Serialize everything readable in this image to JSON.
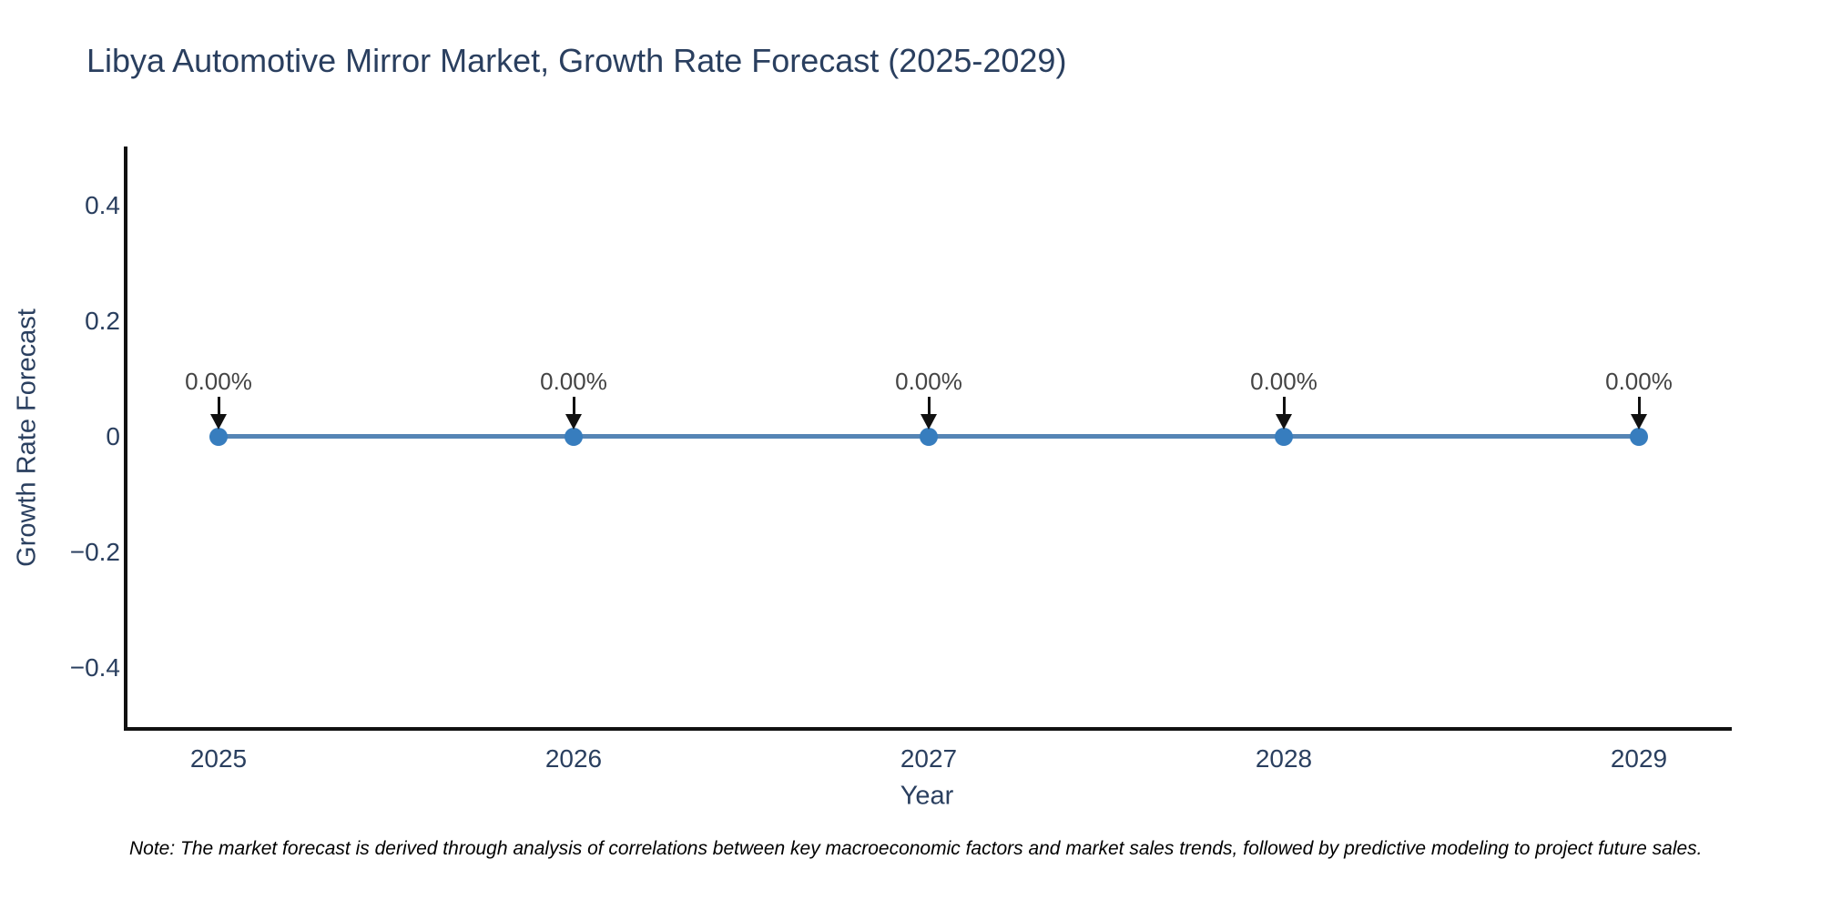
{
  "note": "Note: The market forecast is derived through analysis of correlations between key macroeconomic factors and market sales trends, followed by predictive modeling to project future sales.",
  "colors": {
    "background": "#ffffff",
    "title_text": "#2a3f5f",
    "axis_line": "#111111",
    "series_line": "#5585b5",
    "marker_fill": "#377dbe",
    "annotation_text": "#444444",
    "arrow": "#111111",
    "note_text": "#000000"
  },
  "chart_data": {
    "type": "line",
    "title": "Libya Automotive Mirror Market, Growth Rate Forecast (2025-2029)",
    "xlabel": "Year",
    "ylabel": "Growth Rate Forecast",
    "x": [
      2025,
      2026,
      2027,
      2028,
      2029
    ],
    "x_tick_labels": [
      "2025",
      "2026",
      "2027",
      "2028",
      "2029"
    ],
    "series": [
      {
        "name": "Growth Rate Forecast",
        "values": [
          0,
          0,
          0,
          0,
          0
        ]
      }
    ],
    "point_labels": [
      "0.00%",
      "0.00%",
      "0.00%",
      "0.00%",
      "0.00%"
    ],
    "annotation_style": "label above point with downward arrow",
    "y_ticks": [
      {
        "value": 0.4,
        "label": "0.4"
      },
      {
        "value": 0.2,
        "label": "0.2"
      },
      {
        "value": 0,
        "label": "0"
      },
      {
        "value": -0.2,
        "label": "−0.2"
      },
      {
        "value": -0.4,
        "label": "−0.4"
      }
    ],
    "ylim": [
      -0.5,
      0.5
    ],
    "xlim_years": [
      2024.74,
      2029.26
    ],
    "grid": false,
    "legend_position": "none",
    "marker": "circle"
  }
}
